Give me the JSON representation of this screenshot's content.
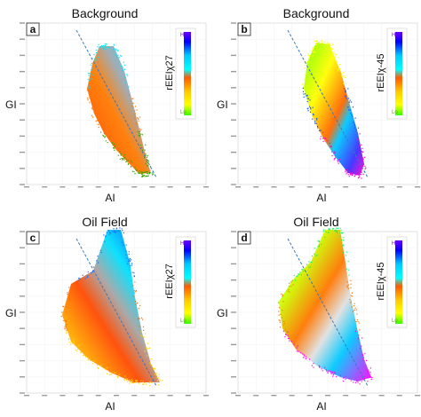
{
  "panels": [
    {
      "letter": "a",
      "title": "Background",
      "xlabel": "AI",
      "ylabel": "GI",
      "colorbar_label": "rEEIχ27",
      "hi": "Hi",
      "lo": "Lo",
      "colors": [
        "#00e5ff",
        "#ff7a00",
        "#33aa00"
      ]
    },
    {
      "letter": "b",
      "title": "Background",
      "xlabel": "AI",
      "ylabel": "GI",
      "colorbar_label": "rEEIχ-45",
      "hi": "Hi",
      "lo": "Lo",
      "colors": [
        "#ffff00",
        "#0050ff",
        "#ff00cc"
      ]
    },
    {
      "letter": "c",
      "title": "Oil Field",
      "xlabel": "AI",
      "ylabel": "GI",
      "colorbar_label": "rEEIχ27",
      "hi": "Hi",
      "lo": "Lo",
      "colors": [
        "#1a6cff",
        "#ff6a00",
        "#ffd000"
      ]
    },
    {
      "letter": "d",
      "title": "Oil Field",
      "xlabel": "AI",
      "ylabel": "GI",
      "colorbar_label": "rEEIχ-45",
      "hi": "Hi",
      "lo": "Lo",
      "colors": [
        "#00ff66",
        "#ff7700",
        "#ff00ff"
      ]
    }
  ],
  "chart_data": [
    {
      "type": "scatter",
      "title": "Background",
      "xlabel": "AI",
      "ylabel": "GI",
      "colorbar": "rEEIχ27",
      "trend_line": "dashed"
    },
    {
      "type": "scatter",
      "title": "Background",
      "xlabel": "AI",
      "ylabel": "GI",
      "colorbar": "rEEIχ-45",
      "trend_line": "dashed"
    },
    {
      "type": "scatter",
      "title": "Oil Field",
      "xlabel": "AI",
      "ylabel": "GI",
      "colorbar": "rEEIχ27",
      "trend_line": "dashed"
    },
    {
      "type": "scatter",
      "title": "Oil Field",
      "xlabel": "AI",
      "ylabel": "GI",
      "colorbar": "rEEIχ-45",
      "trend_line": "dashed"
    }
  ]
}
